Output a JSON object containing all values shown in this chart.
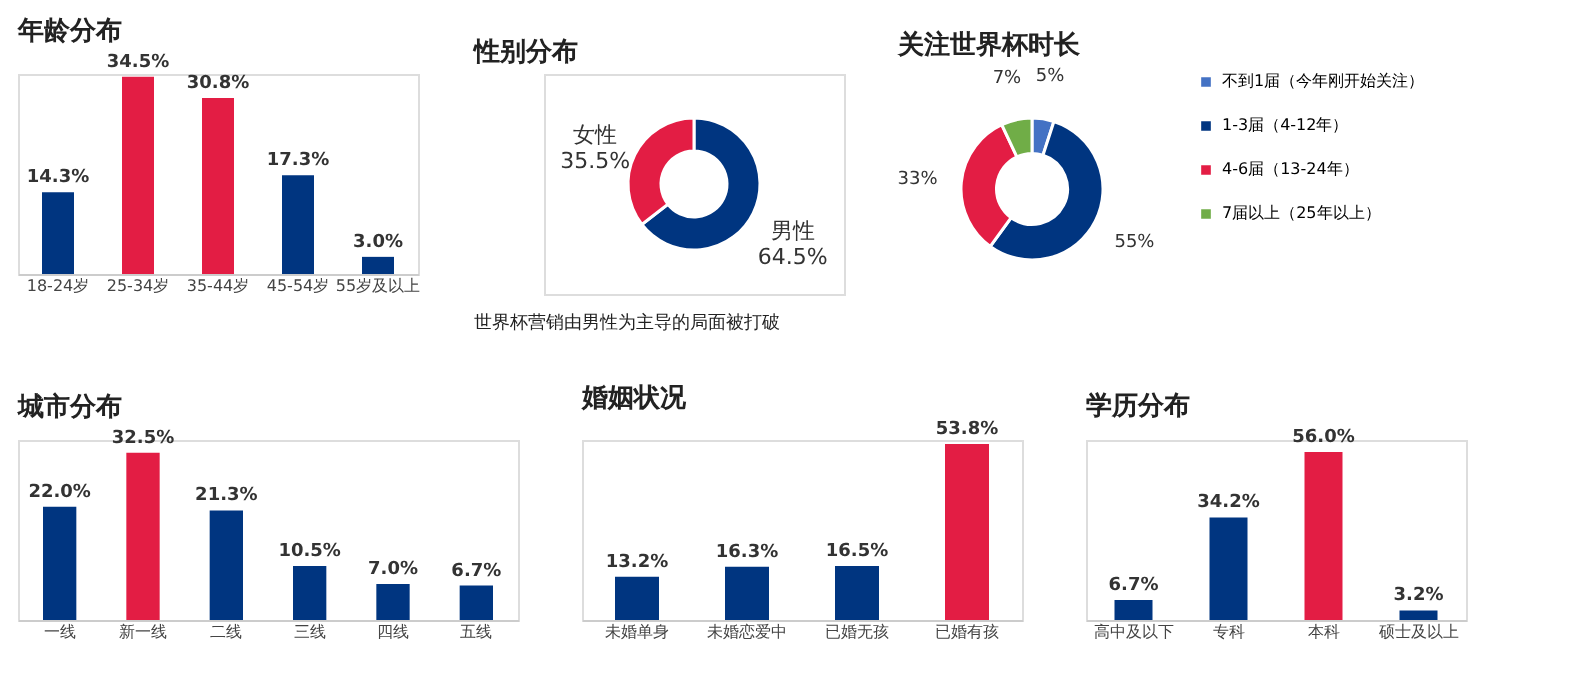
{
  "chart_data": [
    {
      "type": "bar",
      "title": "年龄分布",
      "categories": [
        "18-24岁",
        "25-34岁",
        "35-44岁",
        "45-54岁",
        "55岁及以上"
      ],
      "values": [
        14.3,
        34.5,
        30.8,
        17.3,
        3.0
      ],
      "colors": [
        "#003580",
        "#e31d44",
        "#e31d44",
        "#003580",
        "#003580"
      ],
      "value_labels": [
        "14.3%",
        "34.5%",
        "30.8%",
        "17.3%",
        "3.0%"
      ]
    },
    {
      "type": "donut",
      "title": "性别分布",
      "categories": [
        "男性",
        "女性"
      ],
      "values": [
        64.5,
        35.5
      ],
      "colors": [
        "#003580",
        "#e31d44"
      ],
      "value_labels": [
        "64.5%",
        "35.5%"
      ],
      "annotations": [
        "世界杯营销由男性为主导的局面被打破"
      ],
      "legend": false
    },
    {
      "type": "donut",
      "title": "关注世界杯时长",
      "categories": [
        "不到1届（今年刚开始关注）",
        "1-3届（4-12年）",
        "4-6届（13-24年）",
        "7届以上（25年以上）"
      ],
      "values": [
        5,
        55,
        33,
        7
      ],
      "colors": [
        "#4472c4",
        "#003580",
        "#e31d44",
        "#70ad47"
      ],
      "value_labels": [
        "5%",
        "55%",
        "33%",
        "7%"
      ],
      "legend": "right"
    },
    {
      "type": "bar",
      "title": "城市分布",
      "categories": [
        "一线",
        "新一线",
        "二线",
        "三线",
        "四线",
        "五线"
      ],
      "values": [
        22.0,
        32.5,
        21.3,
        10.5,
        7.0,
        6.7
      ],
      "colors": [
        "#003580",
        "#e31d44",
        "#003580",
        "#003580",
        "#003580",
        "#003580"
      ],
      "value_labels": [
        "22.0%",
        "32.5%",
        "21.3%",
        "10.5%",
        "7.0%",
        "6.7%"
      ]
    },
    {
      "type": "bar",
      "title": "婚姻状况",
      "categories": [
        "未婚单身",
        "未婚恋爱中",
        "已婚无孩",
        "已婚有孩"
      ],
      "values": [
        13.2,
        16.3,
        16.5,
        53.8
      ],
      "colors": [
        "#003580",
        "#003580",
        "#003580",
        "#e31d44"
      ],
      "value_labels": [
        "13.2%",
        "16.3%",
        "16.5%",
        "53.8%"
      ]
    },
    {
      "type": "bar",
      "title": "学历分布",
      "categories": [
        "高中及以下",
        "专科",
        "本科",
        "硕士及以上"
      ],
      "values": [
        6.7,
        34.2,
        56.0,
        3.2
      ],
      "colors": [
        "#003580",
        "#003580",
        "#e31d44",
        "#003580"
      ],
      "value_labels": [
        "6.7%",
        "34.2%",
        "56.0%",
        "3.2%"
      ]
    }
  ]
}
